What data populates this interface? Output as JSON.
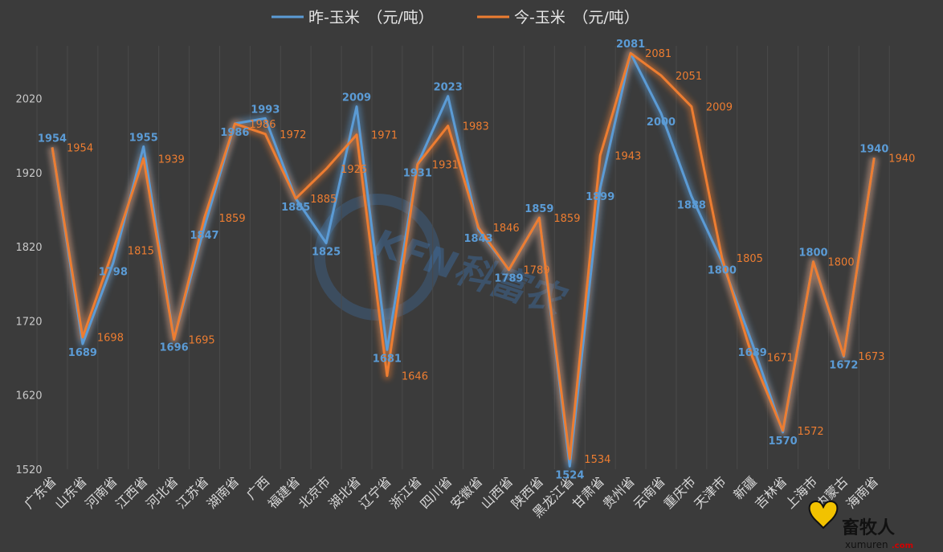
{
  "chart_data": {
    "type": "line",
    "categories": [
      "广东省",
      "山东省",
      "河南省",
      "江西省",
      "河北省",
      "江苏省",
      "湖南省",
      "广西",
      "福建省",
      "北京市",
      "湖北省",
      "辽宁省",
      "浙江省",
      "四川省",
      "安徽省",
      "山西省",
      "陕西省",
      "黑龙江省",
      "甘肃省",
      "贵州省",
      "云南省",
      "重庆市",
      "天津市",
      "新疆",
      "吉林省",
      "上海市",
      "内蒙古",
      "海南省"
    ],
    "series": [
      {
        "name": "昨-玉米　（元/吨）",
        "color": "#5b9bd5",
        "values": [
          1954,
          1689,
          1798,
          1955,
          1696,
          1847,
          1986,
          1993,
          1885,
          1825,
          2009,
          1681,
          1931,
          2023,
          1843,
          1789,
          1859,
          1524,
          1899,
          2081,
          2000,
          1888,
          1800,
          1689,
          1570,
          1800,
          1672,
          1940
        ]
      },
      {
        "name": "今-玉米　（元/吨）",
        "color": "#ed7d31",
        "values": [
          1954,
          1698,
          1815,
          1939,
          1695,
          1859,
          1986,
          1972,
          1885,
          1925,
          1971,
          1646,
          1931,
          1983,
          1846,
          1789,
          1859,
          1534,
          1943,
          2081,
          2051,
          2009,
          1805,
          1671,
          1572,
          1800,
          1673,
          1940
        ]
      }
    ],
    "yticks": [
      1520,
      1620,
      1720,
      1820,
      1920,
      2020
    ],
    "ylim": [
      1520,
      2100
    ],
    "grid": "vertical",
    "legend": "top-center"
  },
  "watermark": {
    "text": "KFN科富农"
  },
  "logo": {
    "text": "畜牧人",
    "sub": "xumuren",
    "suffix": ".com"
  }
}
